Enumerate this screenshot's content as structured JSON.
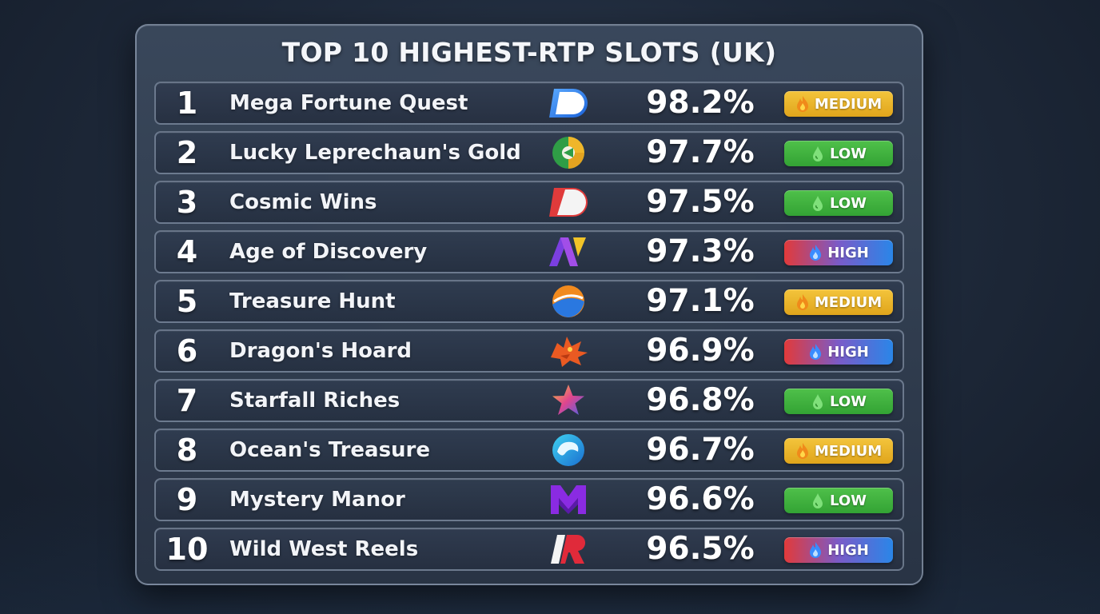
{
  "title": "TOP 10 HIGHEST-RTP SLOTS (UK)",
  "colors": {
    "medium": "#e9b52a",
    "low": "#3fb03f",
    "high_start": "#e23a3a",
    "high_end": "#2a86e8"
  },
  "rows": [
    {
      "rank": "1",
      "name": "Mega Fortune Quest",
      "logo": "blue-white-d-logo-icon",
      "rtp": "98.2%",
      "volatility": "MEDIUM",
      "vol_class": "medium"
    },
    {
      "rank": "2",
      "name": "Lucky Leprechaun's Gold",
      "logo": "green-gold-circle-logo-icon",
      "rtp": "97.7%",
      "volatility": "LOW",
      "vol_class": "low"
    },
    {
      "rank": "3",
      "name": "Cosmic Wins",
      "logo": "red-white-d-logo-icon",
      "rtp": "97.5%",
      "volatility": "LOW",
      "vol_class": "low"
    },
    {
      "rank": "4",
      "name": "Age of Discovery",
      "logo": "purple-yellow-n-logo-icon",
      "rtp": "97.3%",
      "volatility": "HIGH",
      "vol_class": "high"
    },
    {
      "rank": "5",
      "name": "Treasure Hunt",
      "logo": "orange-blue-swirl-logo-icon",
      "rtp": "97.1%",
      "volatility": "MEDIUM",
      "vol_class": "medium"
    },
    {
      "rank": "6",
      "name": "Dragon's Hoard",
      "logo": "dragon-logo-icon",
      "rtp": "96.9%",
      "volatility": "HIGH",
      "vol_class": "high"
    },
    {
      "rank": "7",
      "name": "Starfall Riches",
      "logo": "gradient-star-logo-icon",
      "rtp": "96.8%",
      "volatility": "LOW",
      "vol_class": "low"
    },
    {
      "rank": "8",
      "name": "Ocean's Treasure",
      "logo": "ocean-wave-logo-icon",
      "rtp": "96.7%",
      "volatility": "MEDIUM",
      "vol_class": "medium"
    },
    {
      "rank": "9",
      "name": "Mystery Manor",
      "logo": "purple-m-logo-icon",
      "rtp": "96.6%",
      "volatility": "LOW",
      "vol_class": "low"
    },
    {
      "rank": "10",
      "name": "Wild West Reels",
      "logo": "red-white-r-logo-icon",
      "rtp": "96.5%",
      "volatility": "HIGH",
      "vol_class": "high"
    }
  ]
}
